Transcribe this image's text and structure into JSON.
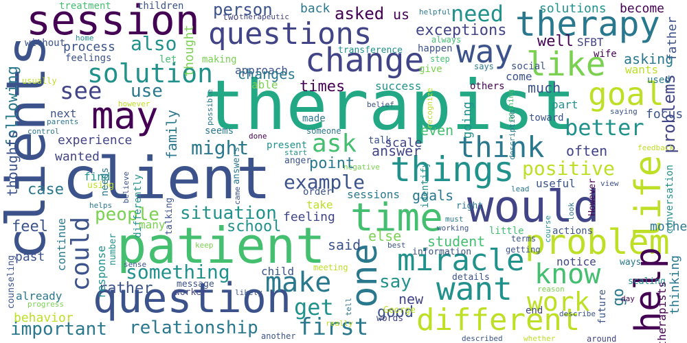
{
  "palette": {
    "dark_purple": "#440154",
    "indigo": "#414487",
    "blue": "#3b528b",
    "teal_blue": "#2a788e",
    "teal": "#21918c",
    "green_teal": "#22a884",
    "green": "#44bf70",
    "light_green": "#7ad151",
    "lime": "#bddf26",
    "yellow": "#fde725"
  },
  "words": [
    {
      "id": "therapist",
      "text": "therapist"
    },
    {
      "id": "client",
      "text": "client"
    },
    {
      "id": "clients",
      "text": "clients"
    },
    {
      "id": "patient",
      "text": "patient"
    },
    {
      "id": "would",
      "text": "would"
    },
    {
      "id": "question",
      "text": "question"
    },
    {
      "id": "session",
      "text": "session"
    },
    {
      "id": "questions",
      "text": "questions"
    },
    {
      "id": "therapy",
      "text": "therapy"
    },
    {
      "id": "change",
      "text": "change"
    },
    {
      "id": "may",
      "text": "may"
    },
    {
      "id": "solution",
      "text": "solution"
    },
    {
      "id": "way",
      "text": "way"
    },
    {
      "id": "like",
      "text": "like"
    },
    {
      "id": "goal",
      "text": "goal"
    },
    {
      "id": "time",
      "text": "time"
    },
    {
      "id": "things",
      "text": "things"
    },
    {
      "id": "problem",
      "text": "problem"
    },
    {
      "id": "help",
      "text": "help"
    },
    {
      "id": "life",
      "text": "life"
    },
    {
      "id": "one",
      "text": "one"
    },
    {
      "id": "miracle",
      "text": "miracle"
    },
    {
      "id": "want",
      "text": "want"
    },
    {
      "id": "different",
      "text": "different"
    },
    {
      "id": "know",
      "text": "know"
    },
    {
      "id": "work",
      "text": "work"
    },
    {
      "id": "make",
      "text": "make"
    },
    {
      "id": "could",
      "text": "could"
    },
    {
      "id": "think",
      "text": "think"
    },
    {
      "id": "better",
      "text": "better"
    },
    {
      "id": "see",
      "text": "see"
    },
    {
      "id": "ask",
      "text": "ask"
    },
    {
      "id": "need",
      "text": "need"
    },
    {
      "id": "also",
      "text": "also"
    },
    {
      "id": "use",
      "text": "use"
    },
    {
      "id": "might",
      "text": "might"
    },
    {
      "id": "positive",
      "text": "positive"
    },
    {
      "id": "example",
      "text": "example"
    },
    {
      "id": "something",
      "text": "something"
    },
    {
      "id": "situation",
      "text": "situation"
    },
    {
      "id": "people",
      "text": "people"
    },
    {
      "id": "relationship",
      "text": "relationship"
    },
    {
      "id": "important",
      "text": "important"
    },
    {
      "id": "first",
      "text": "first"
    },
    {
      "id": "get",
      "text": "get"
    },
    {
      "id": "good",
      "text": "good"
    },
    {
      "id": "say",
      "text": "say"
    },
    {
      "id": "rather",
      "text": "rather"
    },
    {
      "id": "problems",
      "text": "problems"
    },
    {
      "id": "exceptions",
      "text": "exceptions"
    },
    {
      "id": "person",
      "text": "person"
    },
    {
      "id": "asked",
      "text": "asked"
    },
    {
      "id": "us",
      "text": "us"
    },
    {
      "id": "solutions",
      "text": "solutions"
    },
    {
      "id": "become",
      "text": "become"
    },
    {
      "id": "father",
      "text": "father"
    },
    {
      "id": "treatment",
      "text": "treatment"
    },
    {
      "id": "children",
      "text": "children"
    },
    {
      "id": "back",
      "text": "back"
    },
    {
      "id": "two",
      "text": "two"
    },
    {
      "id": "therapeutic",
      "text": "therapeutic"
    },
    {
      "id": "helpful",
      "text": "helpful"
    },
    {
      "id": "without",
      "text": "without"
    },
    {
      "id": "process",
      "text": "process"
    },
    {
      "id": "feelings",
      "text": "feelings"
    },
    {
      "id": "thought",
      "text": "thought"
    },
    {
      "id": "making",
      "text": "making"
    },
    {
      "id": "let",
      "text": "let"
    },
    {
      "id": "home",
      "text": "home"
    },
    {
      "id": "transference",
      "text": "transference"
    },
    {
      "id": "always",
      "text": "always"
    },
    {
      "id": "well",
      "text": "well"
    },
    {
      "id": "sfbt",
      "text": "SFBT"
    },
    {
      "id": "following",
      "text": "following"
    },
    {
      "id": "usually",
      "text": "usually"
    },
    {
      "id": "approach",
      "text": "approach"
    },
    {
      "id": "changes",
      "text": "changes"
    },
    {
      "id": "step",
      "text": "step"
    },
    {
      "id": "happen",
      "text": "happen"
    },
    {
      "id": "give",
      "text": "give"
    },
    {
      "id": "says",
      "text": "says"
    },
    {
      "id": "social",
      "text": "social"
    },
    {
      "id": "wife",
      "text": "wife"
    },
    {
      "id": "asking",
      "text": "asking"
    },
    {
      "id": "wants",
      "text": "wants"
    },
    {
      "id": "used",
      "text": "used"
    },
    {
      "id": "times",
      "text": "times"
    },
    {
      "id": "success",
      "text": "success"
    },
    {
      "id": "able",
      "text": "able"
    },
    {
      "id": "others",
      "text": "others"
    },
    {
      "id": "much",
      "text": "much"
    },
    {
      "id": "come",
      "text": "come"
    },
    {
      "id": "going",
      "text": "going"
    },
    {
      "id": "however_lc",
      "text": "however"
    },
    {
      "id": "possible",
      "text": "possible"
    },
    {
      "id": "belief",
      "text": "belief"
    },
    {
      "id": "recognize",
      "text": "recognize"
    },
    {
      "id": "meaning",
      "text": "meaning"
    },
    {
      "id": "part",
      "text": "part"
    },
    {
      "id": "saying",
      "text": "saying"
    },
    {
      "id": "focus",
      "text": "focus"
    },
    {
      "id": "thoughts",
      "text": "thoughts"
    },
    {
      "id": "next",
      "text": "next"
    },
    {
      "id": "parents",
      "text": "parents"
    },
    {
      "id": "control",
      "text": "control"
    },
    {
      "id": "seems",
      "text": "seems"
    },
    {
      "id": "family",
      "text": "family"
    },
    {
      "id": "someone",
      "text": "someone"
    },
    {
      "id": "made",
      "text": "made"
    },
    {
      "id": "even",
      "text": "even"
    },
    {
      "id": "description",
      "text": "description"
    },
    {
      "id": "toward",
      "text": "toward"
    },
    {
      "id": "experience",
      "text": "experience"
    },
    {
      "id": "done",
      "text": "done"
    },
    {
      "id": "answers",
      "text": "answers"
    },
    {
      "id": "talk",
      "text": "talk"
    },
    {
      "id": "present",
      "text": "present"
    },
    {
      "id": "start",
      "text": "start"
    },
    {
      "id": "answer",
      "text": "answer"
    },
    {
      "id": "often",
      "text": "often"
    },
    {
      "id": "feedback",
      "text": "feedback"
    },
    {
      "id": "wanted",
      "text": "wanted"
    },
    {
      "id": "anger",
      "text": "anger"
    },
    {
      "id": "identify",
      "text": "identify"
    },
    {
      "id": "negative",
      "text": "negative"
    },
    {
      "id": "point",
      "text": "point"
    },
    {
      "id": "case",
      "text": "case"
    },
    {
      "id": "find",
      "text": "find"
    },
    {
      "id": "using",
      "text": "using"
    },
    {
      "id": "needs",
      "text": "needs"
    },
    {
      "id": "believe",
      "text": "believe"
    },
    {
      "id": "differently",
      "text": "differently"
    },
    {
      "id": "talking",
      "text": "talking"
    },
    {
      "id": "came",
      "text": "came"
    },
    {
      "id": "order",
      "text": "order"
    },
    {
      "id": "sessions",
      "text": "sessions"
    },
    {
      "id": "goals",
      "text": "goals"
    },
    {
      "id": "lead",
      "text": "lead"
    },
    {
      "id": "useful",
      "text": "useful"
    },
    {
      "id": "view",
      "text": "view"
    },
    {
      "id": "however_uc",
      "text": "However"
    },
    {
      "id": "conversation",
      "text": "conversation"
    },
    {
      "id": "helps",
      "text": "helps"
    },
    {
      "id": "take",
      "text": "take"
    },
    {
      "id": "right",
      "text": "right"
    },
    {
      "id": "look",
      "text": "look"
    },
    {
      "id": "course",
      "text": "course"
    },
    {
      "id": "feel",
      "text": "feel"
    },
    {
      "id": "continue",
      "text": "continue"
    },
    {
      "id": "many",
      "text": "many"
    },
    {
      "id": "school",
      "text": "school"
    },
    {
      "id": "feeling",
      "text": "feeling"
    },
    {
      "id": "must",
      "text": "must"
    },
    {
      "id": "working",
      "text": "working"
    },
    {
      "id": "little",
      "text": "little"
    },
    {
      "id": "terms",
      "text": "terms"
    },
    {
      "id": "mother",
      "text": "mother"
    },
    {
      "id": "actions",
      "text": "actions"
    },
    {
      "id": "past",
      "text": "past"
    },
    {
      "id": "number",
      "text": "number"
    },
    {
      "id": "keep",
      "text": "keep"
    },
    {
      "id": "said",
      "text": "said"
    },
    {
      "id": "else",
      "text": "else"
    },
    {
      "id": "student",
      "text": "student"
    },
    {
      "id": "information",
      "text": "information"
    },
    {
      "id": "getting",
      "text": "getting"
    },
    {
      "id": "best",
      "text": "best"
    },
    {
      "id": "notice",
      "text": "notice"
    },
    {
      "id": "ways",
      "text": "ways"
    },
    {
      "id": "thinking",
      "text": "thinking"
    },
    {
      "id": "response",
      "text": "response"
    },
    {
      "id": "sense",
      "text": "sense"
    },
    {
      "id": "meeting",
      "text": "meeting"
    },
    {
      "id": "child",
      "text": "child"
    },
    {
      "id": "message",
      "text": "message"
    },
    {
      "id": "worker",
      "text": "worker"
    },
    {
      "id": "likely",
      "text": "likely"
    },
    {
      "id": "details",
      "text": "details"
    },
    {
      "id": "reason",
      "text": "reason"
    },
    {
      "id": "scaling",
      "text": "scaling"
    },
    {
      "id": "already",
      "text": "already"
    },
    {
      "id": "progress",
      "text": "progress"
    },
    {
      "id": "counseling",
      "text": "counseling"
    },
    {
      "id": "new",
      "text": "new"
    },
    {
      "id": "tell",
      "text": "tell"
    },
    {
      "id": "end",
      "text": "end"
    },
    {
      "id": "describe",
      "text": "describe"
    },
    {
      "id": "go",
      "text": "go"
    },
    {
      "id": "future",
      "text": "future"
    },
    {
      "id": "day",
      "text": "day"
    },
    {
      "id": "therapists",
      "text": "therapists"
    },
    {
      "id": "behavior",
      "text": "behavior"
    },
    {
      "id": "george",
      "text": "George"
    },
    {
      "id": "words",
      "text": "words"
    },
    {
      "id": "really",
      "text": "really"
    },
    {
      "id": "another",
      "text": "another"
    },
    {
      "id": "described",
      "text": "described"
    },
    {
      "id": "whether",
      "text": "whether"
    },
    {
      "id": "around",
      "text": "around"
    },
    {
      "id": "scale",
      "text": "scale"
    }
  ]
}
